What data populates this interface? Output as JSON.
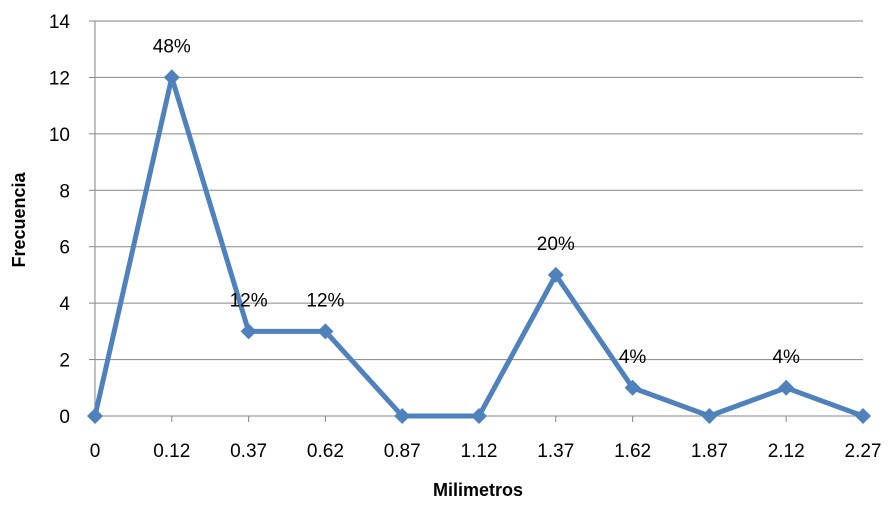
{
  "chart_data": {
    "type": "line",
    "title": "",
    "xlabel": "Milimetros",
    "ylabel": "Frecuencia",
    "categories": [
      "0",
      "0.12",
      "0.37",
      "0.62",
      "0.87",
      "1.12",
      "1.37",
      "1.62",
      "1.87",
      "2.12",
      "2.27"
    ],
    "series": [
      {
        "values": [
          0,
          12,
          3,
          3,
          0,
          0,
          5,
          1,
          0,
          1,
          0
        ],
        "color": "#4F81BD",
        "marker": "diamond"
      }
    ],
    "data_labels": [
      "",
      "48%",
      "12%",
      "12%",
      "",
      "",
      "20%",
      "4%",
      "",
      "4%",
      ""
    ],
    "ylim": [
      0,
      14
    ],
    "yticks": [
      0,
      2,
      4,
      6,
      8,
      10,
      12,
      14
    ],
    "grid": true,
    "legend": "none",
    "gridline_color": "#868686",
    "axis_color": "#868686"
  }
}
